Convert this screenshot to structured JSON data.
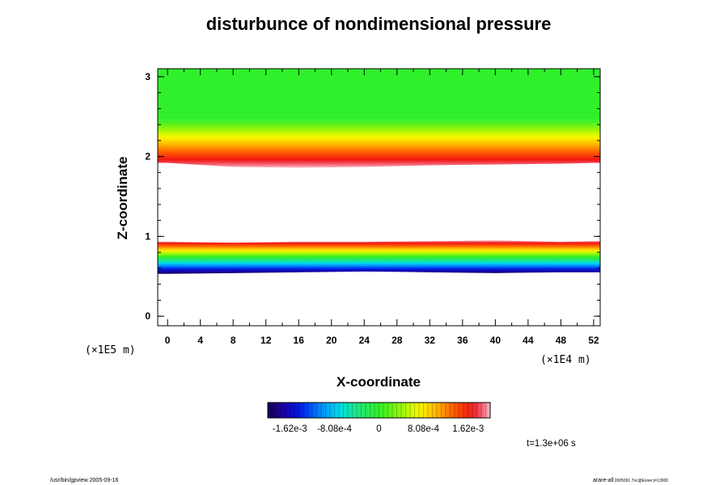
{
  "chart_data": {
    "type": "heatmap",
    "title": "disturbunce of nondimensional pressure",
    "xlabel": "X-coordinate",
    "ylabel": "Z-coordinate",
    "x_unit": "(×1E4 m)",
    "y_unit": "(×1E5 m)",
    "xlim": [
      -1.2,
      52.8
    ],
    "ylim": [
      -0.12,
      3.1
    ],
    "x_ticks": [
      "0",
      "4",
      "8",
      "12",
      "16",
      "20",
      "24",
      "28",
      "32",
      "36",
      "40",
      "44",
      "48",
      "52"
    ],
    "y_ticks": [
      "0",
      "1",
      "2",
      "3"
    ],
    "colorbar": {
      "min": -0.00202,
      "max": 0.00202,
      "tick_values": [
        -0.00162,
        -0.000808,
        0,
        0.000808,
        0.00162
      ],
      "tick_labels": [
        "-1.62e-3",
        "-8.08e-4",
        "0",
        "8.08e-4",
        "1.62e-3"
      ]
    },
    "bands": [
      {
        "name": "upper",
        "z_bottom": 1.88,
        "z_top": 2.46,
        "value_bottom": 0.00202,
        "value_top": 0.0,
        "bottom_offset_x": [
          0,
          8,
          16,
          24,
          32,
          40,
          48,
          52
        ],
        "bottom_offset_z": [
          1.92,
          1.87,
          1.86,
          1.87,
          1.89,
          1.9,
          1.91,
          1.92
        ]
      },
      {
        "name": "lower",
        "z_bottom": 0.53,
        "z_top": 0.95,
        "value_bottom": -0.00202,
        "value_top": 0.00202,
        "top_x": [
          0,
          8,
          16,
          24,
          32,
          40,
          48,
          52
        ],
        "top_z": [
          0.93,
          0.92,
          0.93,
          0.93,
          0.94,
          0.95,
          0.93,
          0.94
        ],
        "bottom_z": [
          0.53,
          0.54,
          0.55,
          0.56,
          0.55,
          0.54,
          0.55,
          0.55
        ]
      }
    ],
    "background_above_value": 0.0,
    "grid": false
  },
  "footer": {
    "time_label": "t=1.3e+06 s",
    "left_note": "/usr/bin/gpview 2005-09-16",
    "right_note": "arare-all",
    "right_note_small": "2005091 7nc@Exner,t=13000"
  },
  "colors": {
    "background": "#ffffff",
    "frame": "#000000",
    "zero_color": "#2ff02a"
  }
}
